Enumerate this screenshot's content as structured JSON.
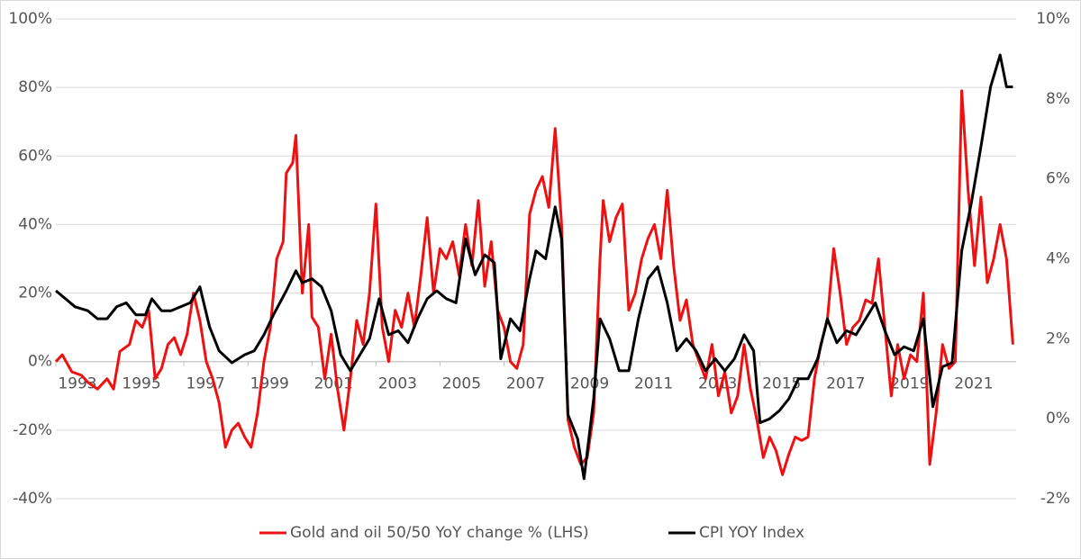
{
  "chart_data": {
    "type": "line",
    "xlim": [
      1993,
      2023
    ],
    "xticks": [
      1993,
      1995,
      1997,
      1999,
      2001,
      2003,
      2005,
      2007,
      2009,
      2011,
      2013,
      2015,
      2017,
      2019,
      2021
    ],
    "ylim": [
      -40,
      100
    ],
    "yticks": [
      {
        "value": -40,
        "label": "-40%"
      },
      {
        "value": -20,
        "label": "-20%"
      },
      {
        "value": 0,
        "label": "0%"
      },
      {
        "value": 20,
        "label": "20%"
      },
      {
        "value": 40,
        "label": "40%"
      },
      {
        "value": 60,
        "label": "60%"
      },
      {
        "value": 80,
        "label": "80%"
      },
      {
        "value": 100,
        "label": "100%"
      }
    ],
    "y2lim": [
      -2,
      10
    ],
    "y2ticks": [
      {
        "value": -2,
        "label": "-2%"
      },
      {
        "value": 0,
        "label": "0%"
      },
      {
        "value": 2,
        "label": "2%"
      },
      {
        "value": 4,
        "label": "4%"
      },
      {
        "value": 6,
        "label": "6%"
      },
      {
        "value": 8,
        "label": "8%"
      },
      {
        "value": 10,
        "label": "10%"
      }
    ],
    "grid": true,
    "legend": "bottom",
    "series": [
      {
        "name": "Gold and oil 50/50 YoY change % (LHS)",
        "color": "#ee1111",
        "axis": "y",
        "x": [
          1993.0,
          1993.2,
          1993.5,
          1993.8,
          1994.0,
          1994.3,
          1994.6,
          1994.8,
          1995.0,
          1995.3,
          1995.5,
          1995.7,
          1995.9,
          1996.1,
          1996.3,
          1996.5,
          1996.7,
          1996.9,
          1997.1,
          1997.3,
          1997.5,
          1997.7,
          1997.9,
          1998.1,
          1998.3,
          1998.5,
          1998.7,
          1998.9,
          1999.1,
          1999.3,
          1999.5,
          1999.7,
          1999.9,
          2000.1,
          2000.2,
          2000.4,
          2000.5,
          2000.7,
          2000.9,
          2001.0,
          2001.2,
          2001.4,
          2001.6,
          2001.8,
          2002.0,
          2002.2,
          2002.4,
          2002.6,
          2002.8,
          2003.0,
          2003.2,
          2003.4,
          2003.6,
          2003.8,
          2004.0,
          2004.2,
          2004.4,
          2004.6,
          2004.8,
          2005.0,
          2005.2,
          2005.4,
          2005.6,
          2005.8,
          2006.0,
          2006.2,
          2006.4,
          2006.6,
          2006.8,
          2007.0,
          2007.2,
          2007.4,
          2007.6,
          2007.8,
          2008.0,
          2008.2,
          2008.4,
          2008.6,
          2008.8,
          2009.0,
          2009.2,
          2009.4,
          2009.6,
          2009.8,
          2010.0,
          2010.1,
          2010.3,
          2010.5,
          2010.7,
          2010.9,
          2011.1,
          2011.3,
          2011.5,
          2011.7,
          2011.9,
          2012.1,
          2012.3,
          2012.5,
          2012.7,
          2012.9,
          2013.1,
          2013.3,
          2013.5,
          2013.7,
          2013.9,
          2014.1,
          2014.3,
          2014.5,
          2014.7,
          2014.9,
          2015.1,
          2015.3,
          2015.5,
          2015.7,
          2015.9,
          2016.1,
          2016.3,
          2016.5,
          2016.7,
          2016.9,
          2017.1,
          2017.3,
          2017.5,
          2017.7,
          2017.9,
          2018.1,
          2018.3,
          2018.5,
          2018.7,
          2018.9,
          2019.1,
          2019.3,
          2019.5,
          2019.7,
          2019.9,
          2020.1,
          2020.3,
          2020.5,
          2020.7,
          2020.9,
          2021.1,
          2021.3,
          2021.5,
          2021.7,
          2021.9,
          2022.1,
          2022.3,
          2022.5,
          2022.7,
          2022.9
        ],
        "values": [
          0,
          2,
          -3,
          -4,
          -6,
          -8,
          -5,
          -8,
          3,
          5,
          12,
          10,
          15,
          -5,
          -2,
          5,
          7,
          2,
          8,
          20,
          12,
          0,
          -5,
          -12,
          -25,
          -20,
          -18,
          -22,
          -25,
          -15,
          0,
          10,
          30,
          35,
          55,
          58,
          66,
          20,
          40,
          13,
          10,
          -5,
          8,
          -8,
          -20,
          -5,
          12,
          5,
          20,
          46,
          10,
          0,
          15,
          10,
          20,
          10,
          25,
          42,
          20,
          33,
          30,
          35,
          25,
          40,
          28,
          47,
          22,
          35,
          15,
          10,
          0,
          -2,
          5,
          43,
          50,
          54,
          45,
          68,
          40,
          -17,
          -25,
          -30,
          -28,
          -15,
          30,
          47,
          35,
          42,
          46,
          15,
          20,
          30,
          36,
          40,
          30,
          50,
          28,
          12,
          18,
          5,
          0,
          -5,
          5,
          -10,
          -3,
          -15,
          -10,
          5,
          -8,
          -17,
          -28,
          -22,
          -26,
          -33,
          -27,
          -22,
          -23,
          -22,
          -5,
          5,
          12,
          33,
          20,
          5,
          10,
          12,
          18,
          17,
          30,
          10,
          -10,
          5,
          -5,
          2,
          0,
          20,
          -30,
          -15,
          5,
          -2,
          0,
          79,
          50,
          28,
          48,
          23,
          30,
          40,
          30,
          5
        ]
      },
      {
        "name": "CPI YOY Index",
        "color": "#000000",
        "axis": "y2",
        "x": [
          1993.0,
          1993.3,
          1993.6,
          1994.0,
          1994.3,
          1994.6,
          1994.9,
          1995.2,
          1995.5,
          1995.8,
          1996.0,
          1996.3,
          1996.6,
          1996.9,
          1997.2,
          1997.5,
          1997.8,
          1998.1,
          1998.5,
          1998.9,
          1999.2,
          1999.5,
          1999.8,
          2000.2,
          2000.5,
          2000.7,
          2001.0,
          2001.3,
          2001.6,
          2001.9,
          2002.2,
          2002.5,
          2002.8,
          2003.1,
          2003.4,
          2003.7,
          2004.0,
          2004.3,
          2004.6,
          2004.9,
          2005.2,
          2005.5,
          2005.8,
          2006.1,
          2006.4,
          2006.7,
          2006.9,
          2007.2,
          2007.5,
          2007.8,
          2008.0,
          2008.3,
          2008.6,
          2008.8,
          2009.0,
          2009.3,
          2009.5,
          2009.8,
          2010.0,
          2010.3,
          2010.6,
          2010.9,
          2011.2,
          2011.5,
          2011.8,
          2012.1,
          2012.4,
          2012.7,
          2013.0,
          2013.3,
          2013.6,
          2013.9,
          2014.2,
          2014.5,
          2014.8,
          2015.0,
          2015.3,
          2015.6,
          2015.9,
          2016.2,
          2016.5,
          2016.8,
          2017.1,
          2017.4,
          2017.7,
          2018.0,
          2018.3,
          2018.6,
          2018.9,
          2019.2,
          2019.5,
          2019.8,
          2020.1,
          2020.4,
          2020.7,
          2021.0,
          2021.3,
          2021.6,
          2021.9,
          2022.2,
          2022.5,
          2022.7,
          2022.9
        ],
        "values": [
          3.2,
          3.0,
          2.8,
          2.7,
          2.5,
          2.5,
          2.8,
          2.9,
          2.6,
          2.6,
          3.0,
          2.7,
          2.7,
          2.8,
          2.9,
          3.3,
          2.3,
          1.7,
          1.4,
          1.6,
          1.7,
          2.1,
          2.6,
          3.2,
          3.7,
          3.4,
          3.5,
          3.3,
          2.7,
          1.6,
          1.2,
          1.6,
          2.0,
          3.0,
          2.1,
          2.2,
          1.9,
          2.5,
          3.0,
          3.2,
          3.0,
          2.9,
          4.5,
          3.6,
          4.1,
          3.9,
          1.5,
          2.5,
          2.2,
          3.5,
          4.2,
          4.0,
          5.3,
          4.5,
          0.1,
          -0.5,
          -1.5,
          0.5,
          2.5,
          2.0,
          1.2,
          1.2,
          2.5,
          3.5,
          3.8,
          2.9,
          1.7,
          2.0,
          1.7,
          1.2,
          1.5,
          1.2,
          1.5,
          2.1,
          1.7,
          -0.1,
          0.0,
          0.2,
          0.5,
          1.0,
          1.0,
          1.5,
          2.5,
          1.9,
          2.2,
          2.1,
          2.5,
          2.9,
          2.2,
          1.6,
          1.8,
          1.7,
          2.5,
          0.3,
          1.3,
          1.4,
          4.2,
          5.4,
          6.8,
          8.3,
          9.1,
          8.3,
          8.3
        ]
      }
    ]
  }
}
